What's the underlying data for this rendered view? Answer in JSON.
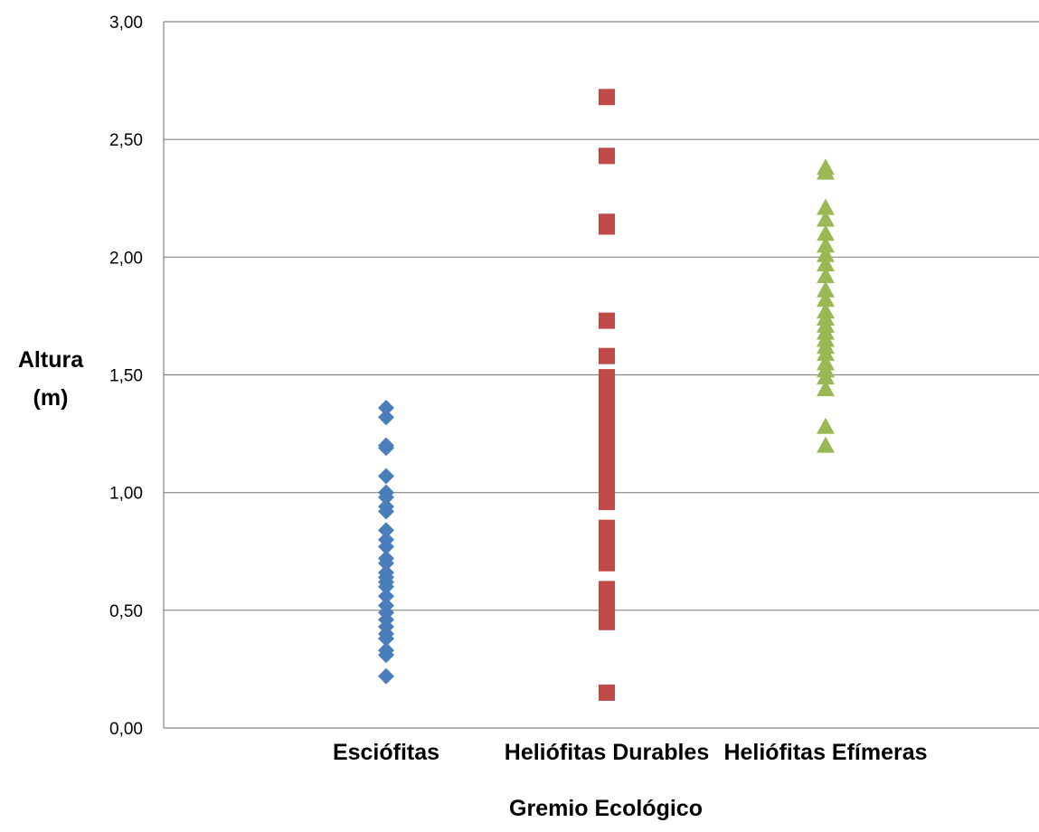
{
  "chart_data": {
    "type": "scatter",
    "xlabel": "Gremio Ecológico",
    "ylabel_line1": "Altura",
    "ylabel_line2": "(m)",
    "ylim": [
      0,
      3
    ],
    "y_ticks": [
      "0,00",
      "0,50",
      "1,00",
      "1,50",
      "2,00",
      "2,50",
      "3,00"
    ],
    "y_tick_values": [
      0,
      0.5,
      1,
      1.5,
      2,
      2.5,
      3
    ],
    "grid": true,
    "categories": [
      "Esciófitas",
      "Heliófitas Durables",
      "Heliófitas Efímeras"
    ],
    "series": [
      {
        "category_index": 0,
        "marker": "diamond",
        "color": "#4a7ebb",
        "values": [
          1.36,
          1.32,
          1.2,
          1.19,
          1.07,
          1.0,
          0.98,
          0.94,
          0.92,
          0.84,
          0.8,
          0.77,
          0.72,
          0.7,
          0.66,
          0.64,
          0.62,
          0.6,
          0.56,
          0.52,
          0.49,
          0.46,
          0.43,
          0.4,
          0.38,
          0.33,
          0.31,
          0.22
        ]
      },
      {
        "category_index": 1,
        "marker": "square",
        "color": "#be4b48",
        "values": [
          2.68,
          2.43,
          2.15,
          2.13,
          1.73,
          1.58,
          1.49,
          1.45,
          1.41,
          1.37,
          1.34,
          1.3,
          1.27,
          1.24,
          1.21,
          1.17,
          1.14,
          1.11,
          1.07,
          1.04,
          1.01,
          0.98,
          0.96,
          0.85,
          0.81,
          0.78,
          0.75,
          0.72,
          0.7,
          0.59,
          0.55,
          0.51,
          0.49,
          0.45,
          0.15
        ]
      },
      {
        "category_index": 2,
        "marker": "triangle",
        "color": "#98b954",
        "values": [
          2.38,
          2.36,
          2.21,
          2.16,
          2.1,
          2.05,
          2.01,
          1.97,
          1.92,
          1.86,
          1.82,
          1.77,
          1.74,
          1.71,
          1.68,
          1.65,
          1.62,
          1.59,
          1.55,
          1.52,
          1.49,
          1.44,
          1.28,
          1.2
        ]
      }
    ]
  }
}
